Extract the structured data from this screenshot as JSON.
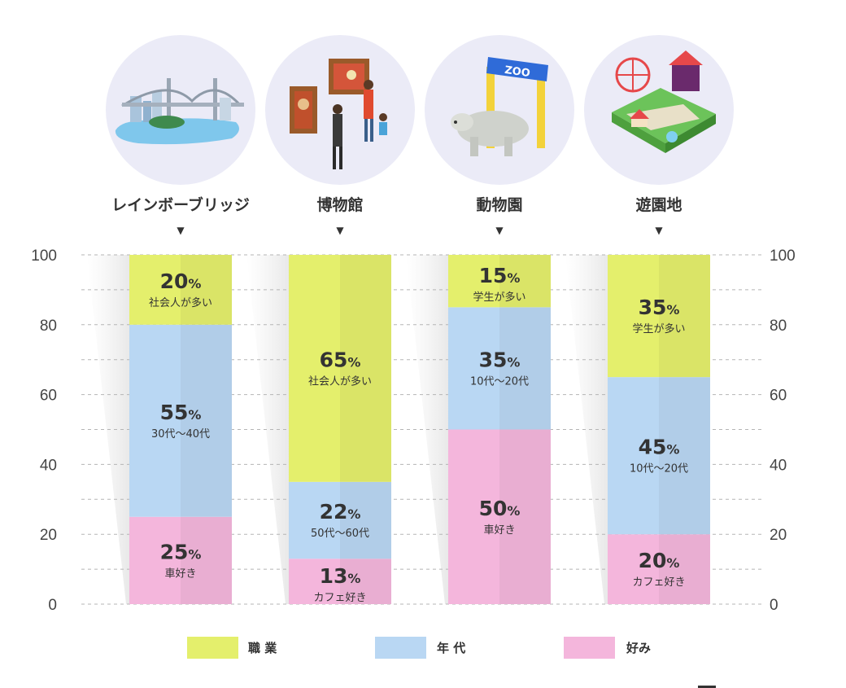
{
  "chart_data": {
    "type": "bar",
    "stacked": true,
    "categories": [
      "レインボーブリッジ",
      "博物館",
      "動物園",
      "遊園地"
    ],
    "category_icons": [
      "rainbow-bridge-icon",
      "museum-icon",
      "zoo-icon",
      "amusement-park-icon"
    ],
    "ylim": [
      0,
      100
    ],
    "yticks": [
      0,
      20,
      40,
      60,
      80,
      100
    ],
    "grid": true,
    "legend_position": "bottom",
    "series": [
      {
        "name": "好み",
        "color": "#f4b6dc",
        "values": [
          25,
          13,
          50,
          20
        ],
        "labels": [
          "車好き",
          "カフェ好き",
          "車好き",
          "カフェ好き"
        ]
      },
      {
        "name": "年 代",
        "color": "#b9d7f3",
        "values": [
          55,
          22,
          35,
          45
        ],
        "labels": [
          "30代〜40代",
          "50代〜60代",
          "10代〜20代",
          "10代〜20代"
        ]
      },
      {
        "name": "職 業",
        "color": "#e4ef6c",
        "values": [
          20,
          65,
          15,
          35
        ],
        "labels": [
          "社会人が多い",
          "社会人が多い",
          "学生が多い",
          "学生が多い"
        ]
      }
    ],
    "legend_order": [
      "職 業",
      "年 代",
      "好み"
    ],
    "percent_symbol": "%"
  }
}
